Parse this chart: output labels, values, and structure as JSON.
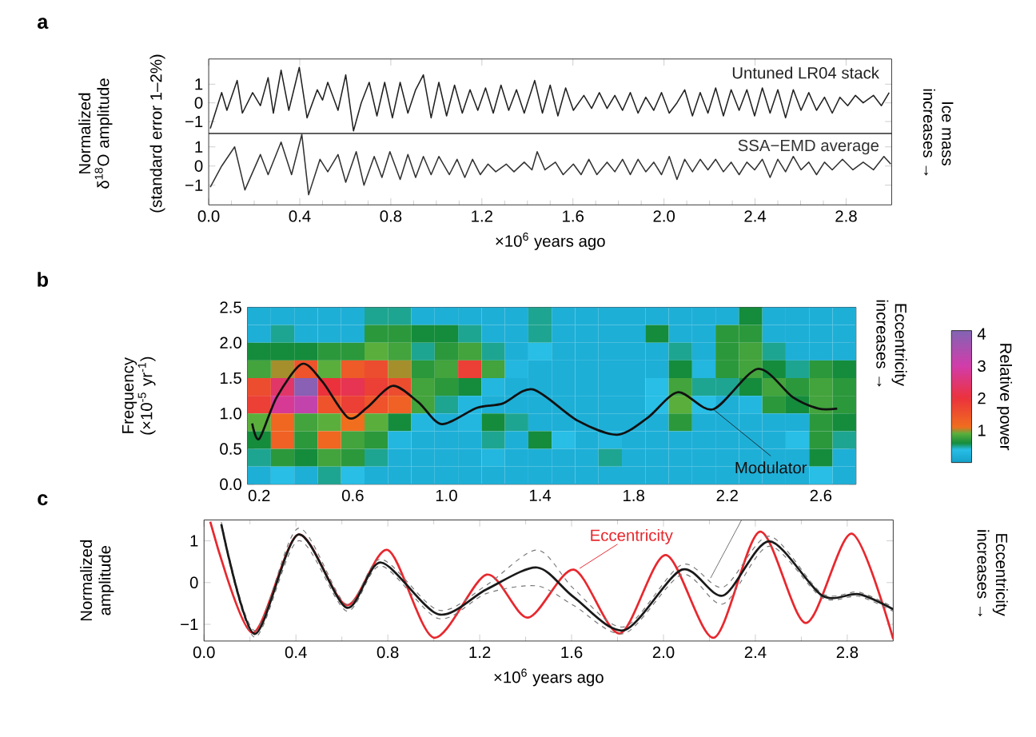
{
  "chart_data": [
    {
      "type": "line",
      "xlim": [
        0,
        3.0
      ],
      "ylim": [
        -1.64,
        2.35
      ],
      "tick_labels": "y",
      "xticks": [
        0,
        0.4,
        0.8,
        1.2,
        1.6,
        2.0,
        2.4,
        2.8
      ],
      "yticks": [
        {
          "value": -1,
          "label": "−1"
        },
        0,
        1
      ],
      "ylabel": "Normalized δ$^{18}$O amplitude",
      "annotations": [
        "a",
        "(standard error 1–2%)",
        "Ice mass",
        "increases →"
      ],
      "series": [
        {
          "name": "Untuned LR04 stack",
          "color": "#222222",
          "x": [
            0.007,
            0.057,
            0.08,
            0.125,
            0.148,
            0.193,
            0.227,
            0.261,
            0.284,
            0.318,
            0.352,
            0.398,
            0.432,
            0.477,
            0.5,
            0.523,
            0.568,
            0.602,
            0.636,
            0.67,
            0.705,
            0.739,
            0.773,
            0.807,
            0.841,
            0.875,
            0.909,
            0.943,
            0.977,
            1.011,
            1.045,
            1.08,
            1.114,
            1.148,
            1.182,
            1.216,
            1.25,
            1.284,
            1.318,
            1.352,
            1.386,
            1.432,
            1.466,
            1.5,
            1.534,
            1.568,
            1.602,
            1.648,
            1.682,
            1.716,
            1.75,
            1.784,
            1.818,
            1.852,
            1.886,
            1.92,
            1.955,
            1.989,
            2.023,
            2.057,
            2.091,
            2.125,
            2.159,
            2.193,
            2.227,
            2.261,
            2.295,
            2.33,
            2.364,
            2.398,
            2.432,
            2.466,
            2.5,
            2.534,
            2.568,
            2.602,
            2.636,
            2.67,
            2.705,
            2.739,
            2.773,
            2.807,
            2.841,
            2.875,
            2.92,
            2.955,
            2.989
          ],
          "values": [
            -1.37,
            0.55,
            -0.4,
            1.2,
            -0.55,
            0.55,
            -0.15,
            1.35,
            -0.55,
            1.75,
            -0.4,
            1.9,
            -0.8,
            0.7,
            0.15,
            1.1,
            -0.4,
            1.5,
            -1.5,
            0,
            1.1,
            -0.7,
            1.1,
            -0.8,
            1.1,
            -0.55,
            0.7,
            1.5,
            -0.8,
            1.1,
            -0.7,
            0.95,
            -0.55,
            0.7,
            -0.4,
            0.8,
            -0.55,
            0.95,
            -0.4,
            0.7,
            -0.55,
            1.2,
            -0.55,
            0.95,
            -0.7,
            0.8,
            -0.4,
            0.4,
            -0.3,
            0.55,
            -0.3,
            0.4,
            -0.4,
            0.55,
            -0.55,
            0.3,
            -0.4,
            0.55,
            -0.55,
            0,
            0.7,
            -0.7,
            0.55,
            -0.55,
            0.8,
            -0.7,
            0.7,
            -0.4,
            0.7,
            -0.7,
            0.8,
            -0.55,
            0.7,
            -0.8,
            0.7,
            -0.4,
            0.55,
            -0.4,
            0.3,
            -0.55,
            0.3,
            -0.15,
            0.4,
            0,
            0.4,
            -0.15,
            0.55
          ]
        }
      ]
    },
    {
      "type": "line",
      "xlim": [
        0,
        3.0
      ],
      "ylim": [
        -2.03,
        1.7
      ],
      "xticks": [
        {
          "value": 0,
          "label": "0.0"
        },
        {
          "value": 0.4,
          "label": "0.4"
        },
        {
          "value": 0.8,
          "label": "0.8"
        },
        {
          "value": 1.2,
          "label": "1.2"
        },
        {
          "value": 1.6,
          "label": "1.6"
        },
        {
          "value": 2.0,
          "label": "2.0"
        },
        {
          "value": 2.4,
          "label": "2.4"
        },
        {
          "value": 2.8,
          "label": "2.8"
        }
      ],
      "yticks": [
        {
          "value": -1,
          "label": "−1"
        },
        0,
        1
      ],
      "xlabel": "×10$^{6}$ years ago",
      "series": [
        {
          "name": "SSA−EMD average",
          "color": "#333333",
          "x": [
            0.007,
            0.057,
            0.114,
            0.159,
            0.227,
            0.261,
            0.318,
            0.364,
            0.409,
            0.439,
            0.489,
            0.523,
            0.568,
            0.602,
            0.648,
            0.682,
            0.727,
            0.761,
            0.796,
            0.841,
            0.875,
            0.909,
            0.943,
            0.977,
            1.011,
            1.057,
            1.091,
            1.125,
            1.159,
            1.193,
            1.227,
            1.261,
            1.307,
            1.341,
            1.386,
            1.42,
            1.443,
            1.477,
            1.523,
            1.557,
            1.602,
            1.636,
            1.67,
            1.705,
            1.75,
            1.784,
            1.818,
            1.852,
            1.886,
            1.92,
            1.955,
            1.989,
            2.023,
            2.057,
            2.091,
            2.125,
            2.159,
            2.193,
            2.227,
            2.261,
            2.295,
            2.33,
            2.364,
            2.398,
            2.432,
            2.466,
            2.5,
            2.534,
            2.568,
            2.602,
            2.636,
            2.67,
            2.705,
            2.739,
            2.784,
            2.83,
            2.875,
            2.92,
            2.966,
            2.996
          ],
          "values": [
            -1.1,
            0,
            1.0,
            -1.25,
            0.6,
            -0.45,
            1.25,
            -0.45,
            1.65,
            -1.5,
            0.35,
            -0.3,
            0.6,
            -0.85,
            0.75,
            -1.0,
            0.5,
            -0.6,
            0.75,
            -0.7,
            0.6,
            -0.6,
            0.5,
            -0.45,
            0.5,
            -0.45,
            0.35,
            -0.6,
            0.35,
            -0.45,
            0.1,
            -0.3,
            0.1,
            -0.3,
            0.2,
            -0.2,
            0.75,
            -0.2,
            0.2,
            -0.45,
            0.1,
            -0.45,
            0.35,
            -0.45,
            0.2,
            -0.3,
            0.35,
            -0.45,
            0.35,
            -0.3,
            0.2,
            -0.45,
            0.5,
            -0.7,
            0.35,
            -0.3,
            0.35,
            -0.2,
            0.35,
            -0.3,
            0.2,
            -0.45,
            0.2,
            -0.2,
            0.35,
            -0.6,
            0.35,
            -0.3,
            0.5,
            -0.2,
            0.2,
            -0.45,
            0.2,
            -0.2,
            0.35,
            -0.2,
            0.2,
            -0.2,
            0.5,
            0.1
          ]
        }
      ]
    },
    {
      "type": "heatmap",
      "xlim": [
        0.15,
        2.75
      ],
      "ylim": [
        0,
        2.5
      ],
      "xticks": [
        0.2,
        0.6,
        {
          "value": 1,
          "label": "1.0"
        },
        1.4,
        1.8,
        2.2,
        2.6
      ],
      "yticks": [
        {
          "value": 0,
          "label": "0.0"
        },
        0.5,
        {
          "value": 1,
          "label": "1.0"
        },
        1.5,
        {
          "value": 2,
          "label": "2.0"
        },
        2.5
      ],
      "ylabel": "Frequency (×10$^{-5}$ yr$^{-1}$)",
      "clabel": "Relative power",
      "clim": [
        0,
        4.1
      ],
      "cticks": [
        1,
        2,
        3,
        4
      ],
      "annotations": [
        "b",
        "Eccentricity",
        "increases →"
      ],
      "x": [
        0.2,
        0.3,
        0.4,
        0.5,
        0.6,
        0.7,
        0.8,
        0.9,
        1.0,
        1.1,
        1.2,
        1.3,
        1.4,
        1.5,
        1.6,
        1.7,
        1.8,
        1.9,
        2.0,
        2.1,
        2.2,
        2.3,
        2.4,
        2.5,
        2.6,
        2.7
      ],
      "y": [
        2.375,
        2.125,
        1.875,
        1.625,
        1.375,
        1.125,
        0.875,
        0.625,
        0.375,
        0.125
      ],
      "cells": [
        [
          0.2,
          0.2,
          0.2,
          0.2,
          0.2,
          0.5,
          0.5,
          0.2,
          0.2,
          0.2,
          0.2,
          0.2,
          0.5,
          0.2,
          0.2,
          0.2,
          0.2,
          0.2,
          0.2,
          0.2,
          0.2,
          0.6,
          0.2,
          0.2,
          0.2,
          0.2
        ],
        [
          0.2,
          0.5,
          0.2,
          0.2,
          0.2,
          0.7,
          0.7,
          0.6,
          0.6,
          0.5,
          0.2,
          0.2,
          0.5,
          0.2,
          0.2,
          0.2,
          0.2,
          0.6,
          0.2,
          0.2,
          0.7,
          0.7,
          0.2,
          0.2,
          0.2,
          0.2
        ],
        [
          0.6,
          0.6,
          0.6,
          0.7,
          0.7,
          0.9,
          0.8,
          0.5,
          0.7,
          0.8,
          0.5,
          0.2,
          0.4,
          0.2,
          0.2,
          0.2,
          0.2,
          0.2,
          0.5,
          0.2,
          0.7,
          0.8,
          0.5,
          0.2,
          0.2,
          0.2
        ],
        [
          0.8,
          1.0,
          1.5,
          0.9,
          1.4,
          1.6,
          1.0,
          0.7,
          0.8,
          1.8,
          0.8,
          0.3,
          0.2,
          0.2,
          0.2,
          0.2,
          0.2,
          0.2,
          0.6,
          0.3,
          0.7,
          0.8,
          0.6,
          0.5,
          0.7,
          0.6
        ],
        [
          1.6,
          2.4,
          4.0,
          2.0,
          2.2,
          1.8,
          1.6,
          0.8,
          0.7,
          0.6,
          0.3,
          0.2,
          0.2,
          0.2,
          0.2,
          0.2,
          0.2,
          0.4,
          0.8,
          0.5,
          0.5,
          0.6,
          0.8,
          0.7,
          0.8,
          0.7
        ],
        [
          1.8,
          2.8,
          3.2,
          1.5,
          1.8,
          1.5,
          1.3,
          0.8,
          0.5,
          0.3,
          0.2,
          0.2,
          0.2,
          0.2,
          0.2,
          0.2,
          0.2,
          0.4,
          0.9,
          0.4,
          0.2,
          0.3,
          0.7,
          0.6,
          0.8,
          0.7
        ],
        [
          0.9,
          1.2,
          0.8,
          0.9,
          1.1,
          0.9,
          0.6,
          0.3,
          0.2,
          0.3,
          0.6,
          0.5,
          0.2,
          0.2,
          0.2,
          0.2,
          0.2,
          0.2,
          0.7,
          0.2,
          0.2,
          0.2,
          0.2,
          0.2,
          0.7,
          0.6
        ],
        [
          0.6,
          1.3,
          0.7,
          1.2,
          0.8,
          0.7,
          0.3,
          0.2,
          0.2,
          0.2,
          0.5,
          0.2,
          0.6,
          0.4,
          0.2,
          0.3,
          0.2,
          0.2,
          0.2,
          0.2,
          0.2,
          0.2,
          0.2,
          0.4,
          0.7,
          0.5
        ],
        [
          0.5,
          0.7,
          0.6,
          0.8,
          0.7,
          0.5,
          0.2,
          0.2,
          0.2,
          0.2,
          0.3,
          0.2,
          0.2,
          0.2,
          0.2,
          0.5,
          0.2,
          0.2,
          0.2,
          0.2,
          0.2,
          0.2,
          0.2,
          0.2,
          0.6,
          0.2
        ],
        [
          0.2,
          0.4,
          0.2,
          0.5,
          0.4,
          0.2,
          0.2,
          0.2,
          0.2,
          0.2,
          0.2,
          0.2,
          0.2,
          0.2,
          0.2,
          0.2,
          0.2,
          0.2,
          0.2,
          0.2,
          0.2,
          0.2,
          0.2,
          0.2,
          0.4,
          0.2
        ]
      ],
      "series": [
        {
          "name": "Modulator",
          "type": "line",
          "color": "#111111",
          "x": [
            0.17,
            0.2,
            0.275,
            0.383,
            0.47,
            0.58,
            0.66,
            0.77,
            0.88,
            0.98,
            1.13,
            1.24,
            1.37,
            1.56,
            1.73,
            1.86,
            1.99,
            2.14,
            2.33,
            2.48,
            2.59,
            2.67
          ],
          "values": [
            0.86,
            0.64,
            1.23,
            1.7,
            1.45,
            0.94,
            1.08,
            1.39,
            1.16,
            0.85,
            1.08,
            1.14,
            1.34,
            0.9,
            0.7,
            0.94,
            1.3,
            1.06,
            1.63,
            1.23,
            1.07,
            1.07
          ]
        }
      ]
    },
    {
      "type": "line",
      "xlim": [
        0,
        3.0
      ],
      "ylim": [
        -1.4,
        1.5
      ],
      "xticks": [
        {
          "value": 0,
          "label": "0.0"
        },
        {
          "value": 0.4,
          "label": "0.4"
        },
        {
          "value": 0.8,
          "label": "0.8"
        },
        {
          "value": 1.2,
          "label": "1.2"
        },
        {
          "value": 1.6,
          "label": "1.6"
        },
        {
          "value": 2.0,
          "label": "2.0"
        },
        {
          "value": 2.4,
          "label": "2.4"
        },
        {
          "value": 2.8,
          "label": "2.8"
        }
      ],
      "yticks": [
        {
          "value": -1,
          "label": "−1"
        },
        0,
        1
      ],
      "xlabel": "×10$^{6}$ years ago",
      "ylabel": "Normalized amplitude",
      "annotations": [
        "c",
        "Eccentricity",
        "increases →"
      ],
      "series": [
        {
          "name": "Eccentricity",
          "color": "#e8282e",
          "x": [
            0.027,
            0.21,
            0.41,
            0.62,
            0.8,
            1.0,
            1.23,
            1.41,
            1.61,
            1.81,
            2.01,
            2.22,
            2.42,
            2.62,
            2.82,
            3.0
          ],
          "values": [
            1.46,
            -1.2,
            1.15,
            -0.54,
            0.78,
            -1.32,
            0.19,
            -0.84,
            0.31,
            -1.22,
            0.66,
            -1.32,
            1.22,
            -0.97,
            1.17,
            -1.35
          ]
        },
        {
          "color": "#777777",
          "line_style": "dashed",
          "x": [
            0.075,
            0.22,
            0.41,
            0.62,
            0.77,
            1.02,
            1.23,
            1.45,
            1.61,
            1.83,
            2.08,
            2.26,
            2.46,
            2.69,
            2.85,
            3.0
          ],
          "values": [
            1.45,
            -1.15,
            1.3,
            -0.52,
            0.56,
            -0.66,
            -0.06,
            0.78,
            -0.15,
            -1.06,
            0.43,
            -0.11,
            1.11,
            -0.26,
            -0.23,
            -0.59
          ]
        },
        {
          "color": "#777777",
          "line_style": "dashed",
          "x": [
            0.075,
            0.22,
            0.41,
            0.62,
            0.77,
            1.02,
            1.23,
            1.45,
            1.61,
            1.83,
            2.08,
            2.26,
            2.46,
            2.69,
            2.85,
            3.0
          ],
          "values": [
            1.35,
            -1.31,
            1.0,
            -0.68,
            0.4,
            -0.86,
            -0.26,
            -0.08,
            -0.55,
            -1.22,
            0.19,
            -0.51,
            0.87,
            -0.36,
            -0.33,
            -0.69
          ]
        },
        {
          "color": "#1a1a1a",
          "x": [
            0.075,
            0.22,
            0.41,
            0.62,
            0.77,
            1.02,
            1.23,
            1.45,
            1.61,
            1.83,
            2.08,
            2.26,
            2.46,
            2.69,
            2.85,
            3.0
          ],
          "values": [
            1.4,
            -1.23,
            1.15,
            -0.6,
            0.48,
            -0.76,
            -0.16,
            0.36,
            -0.35,
            -1.14,
            0.31,
            -0.31,
            0.99,
            -0.31,
            -0.28,
            -0.64
          ]
        }
      ]
    }
  ]
}
